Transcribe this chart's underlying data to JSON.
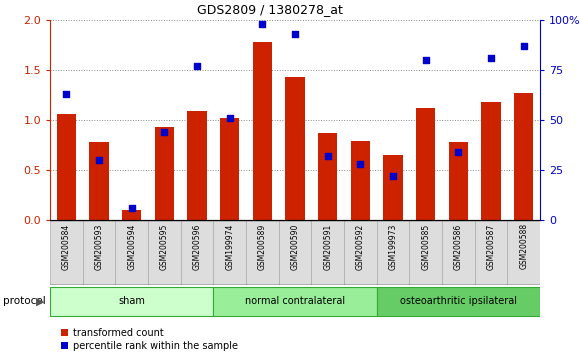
{
  "title": "GDS2809 / 1380278_at",
  "samples": [
    "GSM200584",
    "GSM200593",
    "GSM200594",
    "GSM200595",
    "GSM200596",
    "GSM199974",
    "GSM200589",
    "GSM200590",
    "GSM200591",
    "GSM200592",
    "GSM199973",
    "GSM200585",
    "GSM200586",
    "GSM200587",
    "GSM200588"
  ],
  "red_values": [
    1.06,
    0.78,
    0.1,
    0.93,
    1.09,
    1.02,
    1.78,
    1.43,
    0.87,
    0.79,
    0.65,
    1.12,
    0.78,
    1.18,
    1.27
  ],
  "blue_pct": [
    63,
    30,
    6,
    44,
    77,
    51,
    98,
    93,
    32,
    28,
    22,
    80,
    34,
    81,
    87
  ],
  "groups": [
    {
      "label": "sham",
      "start": 0,
      "end": 5,
      "color": "#ccffcc"
    },
    {
      "label": "normal contralateral",
      "start": 5,
      "end": 10,
      "color": "#99ee99"
    },
    {
      "label": "osteoarthritic ipsilateral",
      "start": 10,
      "end": 15,
      "color": "#66cc66"
    }
  ],
  "ylim_left": [
    0,
    2
  ],
  "ylim_right": [
    0,
    100
  ],
  "yticks_left": [
    0,
    0.5,
    1.0,
    1.5,
    2.0
  ],
  "yticks_right": [
    0,
    25,
    50,
    75,
    100
  ],
  "red_color": "#cc2200",
  "blue_color": "#0000cc",
  "bar_width": 0.6,
  "bg_color": "#ffffff",
  "plot_bg": "#ffffff",
  "legend_red": "transformed count",
  "legend_blue": "percentile rank within the sample",
  "protocol_label": "protocol"
}
